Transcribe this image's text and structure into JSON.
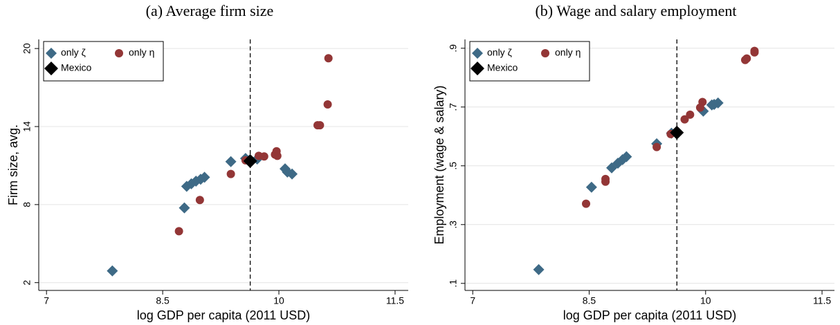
{
  "chart_data": [
    {
      "type": "scatter",
      "title": "(a) Average firm size",
      "xlabel": "log GDP per capita (2011 USD)",
      "ylabel": "Firm size, avg.",
      "xlim": [
        6.9,
        11.67
      ],
      "ylim": [
        1.4,
        20.7
      ],
      "xticks": [
        7,
        8.5,
        10,
        11.5
      ],
      "yticks": [
        2,
        8,
        14,
        20
      ],
      "grid": true,
      "vline": 9.63,
      "legend": "top-left",
      "series": [
        {
          "name": "only ζ",
          "color": "#3e6a86",
          "marker": "diamond",
          "x": [
            7.85,
            8.78,
            8.81,
            8.87,
            8.93,
            8.99,
            9.04,
            9.38,
            9.57,
            9.72,
            10.08,
            10.11,
            10.17
          ],
          "y": [
            2.9,
            7.75,
            9.4,
            9.6,
            9.8,
            9.95,
            10.1,
            11.3,
            11.55,
            11.5,
            10.75,
            10.5,
            10.35
          ]
        },
        {
          "name": "only η",
          "color": "#933636",
          "marker": "circle",
          "x": [
            8.71,
            8.98,
            9.38,
            9.57,
            9.74,
            9.81,
            9.95,
            9.97,
            9.98,
            10.5,
            10.53,
            10.63,
            10.64
          ],
          "y": [
            5.95,
            8.35,
            10.35,
            11.4,
            11.75,
            11.7,
            11.85,
            12.1,
            11.75,
            14.1,
            14.1,
            15.7,
            19.25
          ]
        },
        {
          "name": "Mexico",
          "color": "#000000",
          "marker": "large-diamond",
          "x": [
            9.63
          ],
          "y": [
            11.35
          ]
        }
      ]
    },
    {
      "type": "scatter",
      "title": "(b) Wage and salary employment",
      "xlabel": "log GDP per capita (2011 USD)",
      "ylabel": "Employment (wage & salary)",
      "xlim": [
        6.9,
        11.66
      ],
      "ylim": [
        0.076,
        0.93
      ],
      "xticks": [
        7,
        8.5,
        10,
        11.5
      ],
      "yticks": [
        {
          "value": 0.1,
          "label": ".1"
        },
        {
          "value": 0.3,
          "label": ".3"
        },
        {
          "value": 0.5,
          "label": ".5"
        },
        {
          "value": 0.7,
          "label": ".7"
        },
        {
          "value": 0.9,
          "label": ".9"
        }
      ],
      "grid": true,
      "vline": 9.63,
      "legend": "top-left",
      "series": [
        {
          "name": "only ζ",
          "color": "#3e6a86",
          "marker": "diamond",
          "x": [
            7.85,
            8.53,
            8.79,
            8.87,
            8.93,
            8.98,
            9.37,
            9.56,
            9.97,
            10.08,
            10.11,
            10.16
          ],
          "y": [
            0.147,
            0.427,
            0.493,
            0.509,
            0.521,
            0.531,
            0.575,
            0.611,
            0.686,
            0.707,
            0.709,
            0.714
          ]
        },
        {
          "name": "only η",
          "color": "#933636",
          "marker": "circle",
          "x": [
            8.46,
            8.71,
            8.71,
            9.37,
            9.55,
            9.73,
            9.8,
            9.93,
            9.96,
            10.51,
            10.53,
            10.63,
            10.63
          ],
          "y": [
            0.371,
            0.455,
            0.446,
            0.564,
            0.608,
            0.658,
            0.674,
            0.698,
            0.717,
            0.86,
            0.865,
            0.886,
            0.891
          ]
        },
        {
          "name": "Mexico",
          "color": "#000000",
          "marker": "large-diamond",
          "x": [
            9.63
          ],
          "y": [
            0.613
          ]
        }
      ]
    }
  ]
}
